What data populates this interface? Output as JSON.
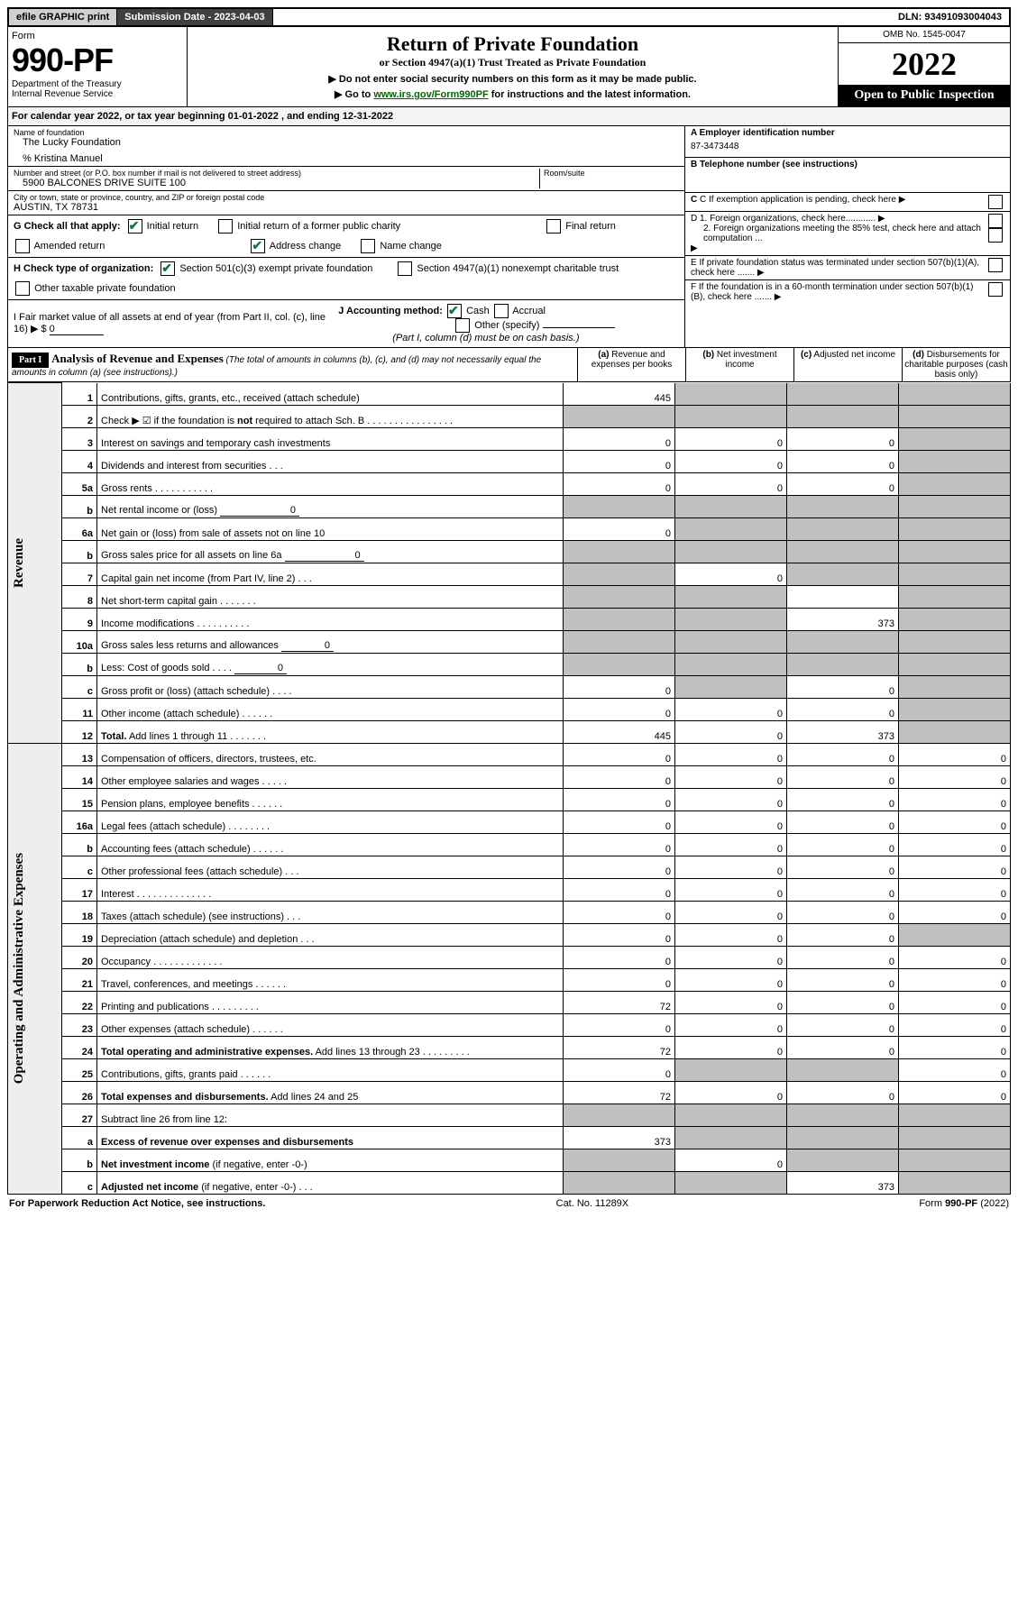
{
  "topbar": {
    "efile": "efile GRAPHIC print",
    "submission": "Submission Date - 2023-04-03",
    "dln": "DLN: 93491093004043"
  },
  "header": {
    "form_label": "Form",
    "form_no": "990-PF",
    "dept": "Department of the Treasury\nInternal Revenue Service",
    "title": "Return of Private Foundation",
    "subtitle": "or Section 4947(a)(1) Trust Treated as Private Foundation",
    "note1": "▶ Do not enter social security numbers on this form as it may be made public.",
    "note2_pre": "▶ Go to ",
    "note2_link": "www.irs.gov/Form990PF",
    "note2_post": " for instructions and the latest information.",
    "omb": "OMB No. 1545-0047",
    "year": "2022",
    "open": "Open to Public Inspection"
  },
  "cy": "For calendar year 2022, or tax year beginning 01-01-2022           , and ending 12-31-2022",
  "meta": {
    "name_label": "Name of foundation",
    "name": "The Lucky Foundation",
    "pct": "% Kristina Manuel",
    "addr_label": "Number and street (or P.O. box number if mail is not delivered to street address)",
    "addr": "5900 BALCONES DRIVE SUITE 100",
    "room_label": "Room/suite",
    "city_label": "City or town, state or province, country, and ZIP or foreign postal code",
    "city": "AUSTIN, TX  78731",
    "a_label": "A Employer identification number",
    "a_val": "87-3473448",
    "b_label": "B Telephone number (see instructions)",
    "c_label": "C If exemption application is pending, check here",
    "d1": "D 1. Foreign organizations, check here............",
    "d2": "2. Foreign organizations meeting the 85% test, check here and attach computation ...",
    "e": "E  If private foundation status was terminated under section 507(b)(1)(A), check here .......",
    "f": "F  If the foundation is in a 60-month termination under section 507(b)(1)(B), check here .......",
    "g_label": "G Check all that apply:",
    "g_opts": [
      "Initial return",
      "Initial return of a former public charity",
      "Final return",
      "Amended return",
      "Address change",
      "Name change"
    ],
    "g_checked": [
      true,
      false,
      false,
      false,
      true,
      false
    ],
    "h_label": "H Check type of organization:",
    "h_opts": [
      "Section 501(c)(3) exempt private foundation",
      "Section 4947(a)(1) nonexempt charitable trust",
      "Other taxable private foundation"
    ],
    "h_checked": [
      true,
      false,
      false
    ],
    "i_label": "I Fair market value of all assets at end of year (from Part II, col. (c), line 16)",
    "i_val": "0",
    "j_label": "J Accounting method:",
    "j_opts": [
      "Cash",
      "Accrual",
      "Other (specify)"
    ],
    "j_checked": [
      true,
      false,
      false
    ],
    "j_note": "(Part I, column (d) must be on cash basis.)"
  },
  "part1": {
    "tag": "Part I",
    "title": "Analysis of Revenue and Expenses",
    "note": "(The total of amounts in columns (b), (c), and (d) may not necessarily equal the amounts in column (a) (see instructions).)",
    "cols": {
      "a": "(a)",
      "a2": "Revenue and expenses per books",
      "b": "(b)",
      "b2": "Net investment income",
      "c": "(c)",
      "c2": "Adjusted net income",
      "d": "(d)",
      "d2": "Disbursements for charitable purposes (cash basis only)"
    }
  },
  "sections": {
    "revenue": "Revenue",
    "expenses": "Operating and Administrative Expenses"
  },
  "rows": [
    {
      "n": "1",
      "d": "Contributions, gifts, grants, etc., received (attach schedule)",
      "a": "445",
      "b": "",
      "c": "",
      "dS": true,
      "bS": true,
      "cS": true
    },
    {
      "n": "2",
      "d": "Check ▶ ☑ if the foundation is <b>not</b> required to attach Sch. B   .  .  .  .  .  .  .  .  .  .  .  .  .  .  .  .",
      "aS": true,
      "bS": true,
      "cS": true,
      "dS": true
    },
    {
      "n": "3",
      "d": "Interest on savings and temporary cash investments",
      "a": "0",
      "b": "0",
      "c": "0",
      "dS": true
    },
    {
      "n": "4",
      "d": "Dividends and interest from securities    .    .    .",
      "a": "0",
      "b": "0",
      "c": "0",
      "dS": true
    },
    {
      "n": "5a",
      "d": "Gross rents    .    .    .    .    .    .    .    .    .    .    .",
      "a": "0",
      "b": "0",
      "c": "0",
      "dS": true
    },
    {
      "n": "b",
      "d": "Net rental income or (loss) <span class='inline-fill'>0</span>",
      "aS": true,
      "bS": true,
      "cS": true,
      "dS": true
    },
    {
      "n": "6a",
      "d": "Net gain or (loss) from sale of assets not on line 10",
      "a": "0",
      "bS": true,
      "cS": true,
      "dS": true
    },
    {
      "n": "b",
      "d": "Gross sales price for all assets on line 6a <span class='inline-fill'>0</span>",
      "aS": true,
      "bS": true,
      "cS": true,
      "dS": true
    },
    {
      "n": "7",
      "d": "Capital gain net income (from Part IV, line 2)   .   .   .",
      "aS": true,
      "b": "0",
      "cS": true,
      "dS": true
    },
    {
      "n": "8",
      "d": "Net short-term capital gain   .   .   .   .   .   .   .",
      "aS": true,
      "bS": true,
      "c": "",
      "dS": true
    },
    {
      "n": "9",
      "d": "Income modifications  .   .   .   .   .   .   .   .   .   .",
      "aS": true,
      "bS": true,
      "c": "373",
      "dS": true
    },
    {
      "n": "10a",
      "d": "Gross sales less returns and allowances <span class='inline-fill' style='min-width:50px'>0</span>",
      "aS": true,
      "bS": true,
      "cS": true,
      "dS": true
    },
    {
      "n": "b",
      "d": "Less: Cost of goods sold    .    .    .    . <span class='inline-fill' style='min-width:50px'>0</span>",
      "aS": true,
      "bS": true,
      "cS": true,
      "dS": true
    },
    {
      "n": "c",
      "d": "Gross profit or (loss) (attach schedule)    .    .    .    .",
      "a": "0",
      "bS": true,
      "c": "0",
      "dS": true
    },
    {
      "n": "11",
      "d": "Other income (attach schedule)    .    .    .    .    .    .",
      "a": "0",
      "b": "0",
      "c": "0",
      "dS": true
    },
    {
      "n": "12",
      "d": "<b>Total.</b> Add lines 1 through 11    .    .    .    .    .    .    .",
      "a": "445",
      "b": "0",
      "c": "373",
      "dS": true
    }
  ],
  "exp_rows": [
    {
      "n": "13",
      "d": "Compensation of officers, directors, trustees, etc.",
      "a": "0",
      "b": "0",
      "c": "0",
      "dd": "0"
    },
    {
      "n": "14",
      "d": "Other employee salaries and wages    .    .    .    .    .",
      "a": "0",
      "b": "0",
      "c": "0",
      "dd": "0"
    },
    {
      "n": "15",
      "d": "Pension plans, employee benefits  .   .   .   .   .   .",
      "a": "0",
      "b": "0",
      "c": "0",
      "dd": "0"
    },
    {
      "n": "16a",
      "d": "Legal fees (attach schedule)  .   .   .   .   .   .   .   .",
      "a": "0",
      "b": "0",
      "c": "0",
      "dd": "0"
    },
    {
      "n": "b",
      "d": "Accounting fees (attach schedule)  .   .   .   .   .   .",
      "a": "0",
      "b": "0",
      "c": "0",
      "dd": "0"
    },
    {
      "n": "c",
      "d": "Other professional fees (attach schedule)    .    .    .",
      "a": "0",
      "b": "0",
      "c": "0",
      "dd": "0"
    },
    {
      "n": "17",
      "d": "Interest  .   .   .   .   .   .   .   .   .   .   .   .   .   .",
      "a": "0",
      "b": "0",
      "c": "0",
      "dd": "0"
    },
    {
      "n": "18",
      "d": "Taxes (attach schedule) (see instructions)    .    .    .",
      "a": "0",
      "b": "0",
      "c": "0",
      "dd": "0"
    },
    {
      "n": "19",
      "d": "Depreciation (attach schedule) and depletion    .    .    .",
      "a": "0",
      "b": "0",
      "c": "0",
      "dS": true
    },
    {
      "n": "20",
      "d": "Occupancy  .   .   .   .   .   .   .   .   .   .   .   .   .",
      "a": "0",
      "b": "0",
      "c": "0",
      "dd": "0"
    },
    {
      "n": "21",
      "d": "Travel, conferences, and meetings  .   .   .   .   .   .",
      "a": "0",
      "b": "0",
      "c": "0",
      "dd": "0"
    },
    {
      "n": "22",
      "d": "Printing and publications  .   .   .   .   .   .   .   .   .",
      "a": "72",
      "b": "0",
      "c": "0",
      "dd": "0"
    },
    {
      "n": "23",
      "d": "Other expenses (attach schedule)  .   .   .   .   .   .",
      "a": "0",
      "b": "0",
      "c": "0",
      "dd": "0"
    },
    {
      "n": "24",
      "d": "<b>Total operating and administrative expenses.</b> Add lines 13 through 23   .   .   .   .   .   .   .   .   .",
      "a": "72",
      "b": "0",
      "c": "0",
      "dd": "0"
    },
    {
      "n": "25",
      "d": "Contributions, gifts, grants paid    .    .    .    .    .    .",
      "a": "0",
      "bS": true,
      "cS": true,
      "dd": "0"
    },
    {
      "n": "26",
      "d": "<b>Total expenses and disbursements.</b> Add lines 24 and 25",
      "a": "72",
      "b": "0",
      "c": "0",
      "dd": "0"
    },
    {
      "n": "27",
      "d": "Subtract line 26 from line 12:",
      "aS": true,
      "bS": true,
      "cS": true,
      "dS": true
    },
    {
      "n": "a",
      "d": "<b>Excess of revenue over expenses and disbursements</b>",
      "a": "373",
      "bS": true,
      "cS": true,
      "dS": true
    },
    {
      "n": "b",
      "d": "<b>Net investment income</b> (if negative, enter -0-)",
      "aS": true,
      "b": "0",
      "cS": true,
      "dS": true
    },
    {
      "n": "c",
      "d": "<b>Adjusted net income</b> (if negative, enter -0-)   .   .   .",
      "aS": true,
      "bS": true,
      "c": "373",
      "dS": true
    }
  ],
  "footer": {
    "left": "For Paperwork Reduction Act Notice, see instructions.",
    "mid": "Cat. No. 11289X",
    "right": "Form 990-PF (2022)"
  }
}
